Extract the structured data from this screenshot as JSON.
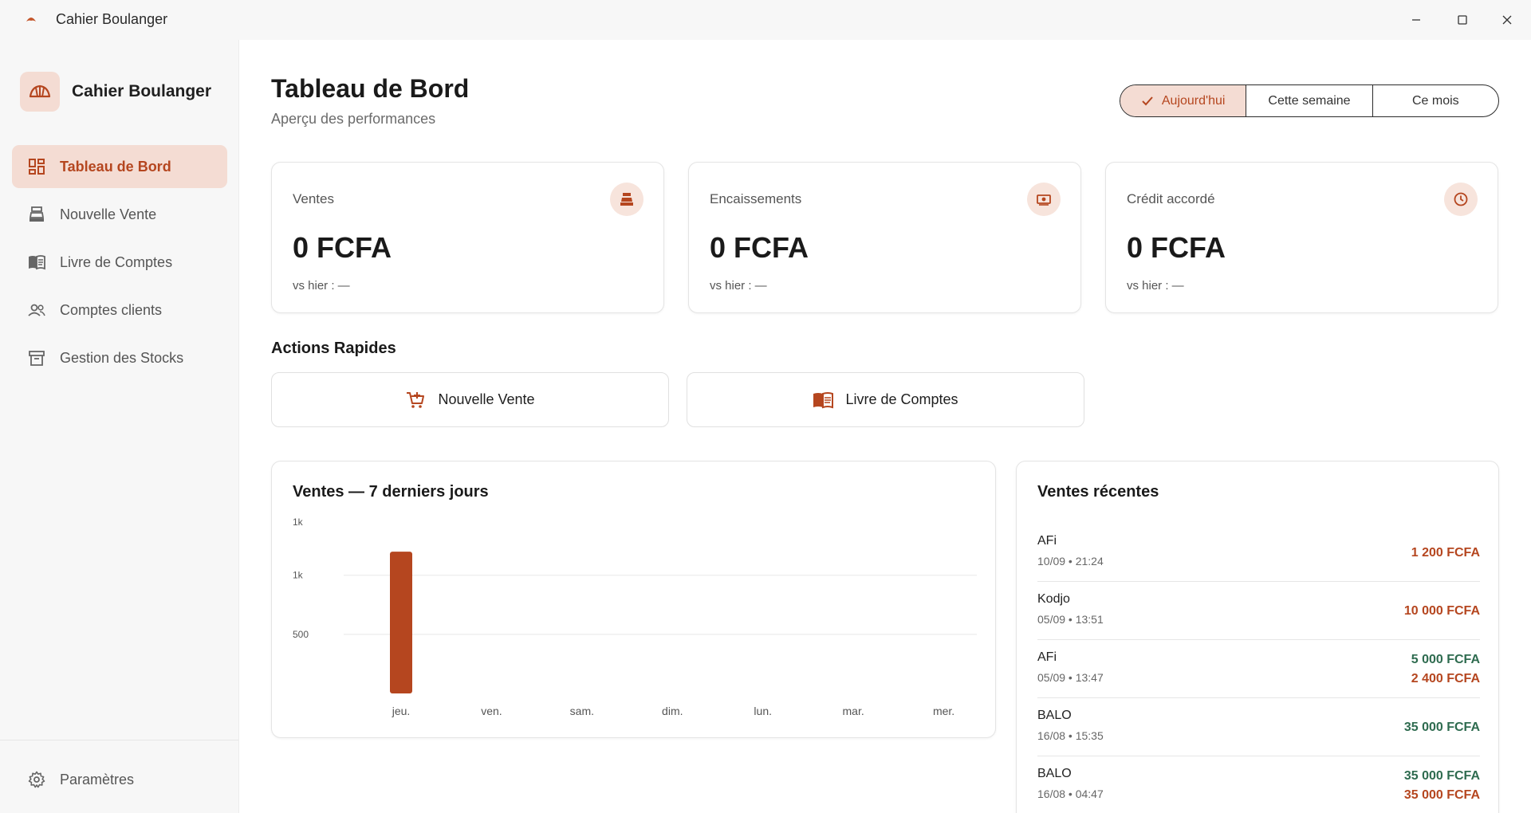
{
  "window": {
    "title": "Cahier Boulanger"
  },
  "sidebar": {
    "brand": "Cahier Boulanger",
    "items": [
      {
        "label": "Tableau de Bord",
        "icon": "dashboard-icon",
        "active": true
      },
      {
        "label": "Nouvelle Vente",
        "icon": "cash-register-icon",
        "active": false
      },
      {
        "label": "Livre de Comptes",
        "icon": "book-icon",
        "active": false
      },
      {
        "label": "Comptes clients",
        "icon": "people-icon",
        "active": false
      },
      {
        "label": "Gestion des Stocks",
        "icon": "archive-icon",
        "active": false
      }
    ],
    "settings_label": "Paramètres"
  },
  "header": {
    "title": "Tableau de Bord",
    "subtitle": "Aperçu des performances"
  },
  "period_filter": {
    "options": [
      "Aujourd'hui",
      "Cette semaine",
      "Ce mois"
    ],
    "selected": "Aujourd'hui"
  },
  "stats": [
    {
      "label": "Ventes",
      "value": "0 FCFA",
      "compare": "vs hier : —",
      "icon": "cash-register-icon"
    },
    {
      "label": "Encaissements",
      "value": "0 FCFA",
      "compare": "vs hier : —",
      "icon": "money-icon"
    },
    {
      "label": "Crédit accordé",
      "value": "0 FCFA",
      "compare": "vs hier : —",
      "icon": "clock-icon"
    }
  ],
  "quick_actions": {
    "title": "Actions Rapides",
    "buttons": [
      {
        "label": "Nouvelle Vente",
        "icon": "cart-plus-icon"
      },
      {
        "label": "Livre de Comptes",
        "icon": "book-icon"
      }
    ]
  },
  "chart_panel": {
    "title": "Ventes — 7 derniers jours"
  },
  "chart_data": {
    "type": "bar",
    "title": "Ventes — 7 derniers jours",
    "categories": [
      "jeu.",
      "ven.",
      "sam.",
      "dim.",
      "lun.",
      "mar.",
      "mer."
    ],
    "values": [
      1200,
      0,
      0,
      0,
      0,
      0,
      0
    ],
    "y_ticks": [
      {
        "value": 500,
        "label": "500"
      },
      {
        "value": 1000,
        "label": "1k"
      },
      {
        "value": 1450,
        "label": "1k"
      }
    ],
    "ylim": [
      0,
      1450
    ],
    "grid": true,
    "bar_color": "#b5461f"
  },
  "recent_sales": {
    "title": "Ventes récentes",
    "rows": [
      {
        "name": "AFi",
        "when": "10/09 • 21:24",
        "amounts": [
          {
            "text": "1 200 FCFA",
            "tone": "orange"
          }
        ]
      },
      {
        "name": "Kodjo",
        "when": "05/09 • 13:51",
        "amounts": [
          {
            "text": "10 000 FCFA",
            "tone": "orange"
          }
        ]
      },
      {
        "name": "AFi",
        "when": "05/09 • 13:47",
        "amounts": [
          {
            "text": "5 000 FCFA",
            "tone": "green"
          },
          {
            "text": "2 400 FCFA",
            "tone": "orange"
          }
        ]
      },
      {
        "name": "BALO",
        "when": "16/08 • 15:35",
        "amounts": [
          {
            "text": "35 000 FCFA",
            "tone": "green"
          }
        ]
      },
      {
        "name": "BALO",
        "when": "16/08 • 04:47",
        "amounts": [
          {
            "text": "35 000 FCFA",
            "tone": "green"
          },
          {
            "text": "35 000 FCFA",
            "tone": "orange"
          }
        ]
      }
    ]
  },
  "colors": {
    "accent": "#b5461f",
    "accent_soft": "#f4dcd3",
    "positive": "#2e6b4f"
  }
}
